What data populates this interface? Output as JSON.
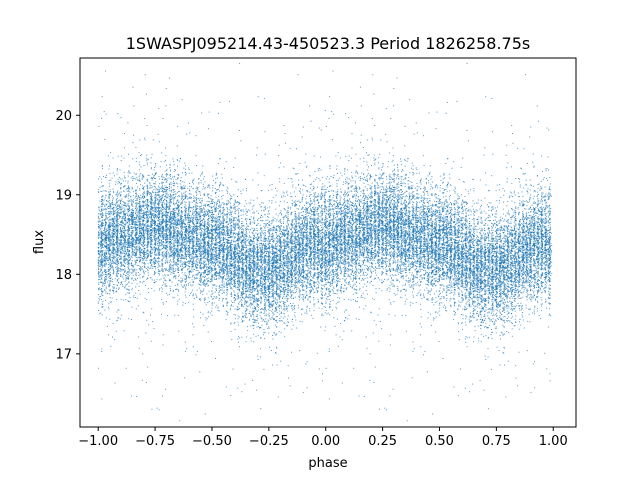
{
  "chart_data": {
    "type": "scatter",
    "title": "1SWASPJ095214.43-450523.3 Period 1826258.75s",
    "xlabel": "phase",
    "ylabel": "flux",
    "xlim": [
      -1.08,
      1.1
    ],
    "ylim": [
      16.08,
      20.72
    ],
    "xticks": [
      -1.0,
      -0.75,
      -0.5,
      -0.25,
      0.0,
      0.25,
      0.5,
      0.75,
      1.0
    ],
    "xtick_labels": [
      "−1.00",
      "−0.75",
      "−0.50",
      "−0.25",
      "0.00",
      "0.25",
      "0.50",
      "0.75",
      "1.00"
    ],
    "yticks": [
      17,
      18,
      19,
      20
    ],
    "ytick_labels": [
      "17",
      "18",
      "19",
      "20"
    ],
    "marker_color": "#1f77b4",
    "grid": false,
    "phase_curve": {
      "description_points": [
        {
          "phase": 0.0,
          "flux": 18.4
        },
        {
          "phase": 0.25,
          "flux": 18.6
        },
        {
          "phase": 0.5,
          "flux": 18.4
        },
        {
          "phase": 0.7,
          "flux": 18.05
        },
        {
          "phase": 1.0,
          "flux": 18.4
        }
      ],
      "repeats_at_phase_offset": -1.0,
      "typical_scatter": 0.32,
      "approx_points": 14000
    }
  }
}
